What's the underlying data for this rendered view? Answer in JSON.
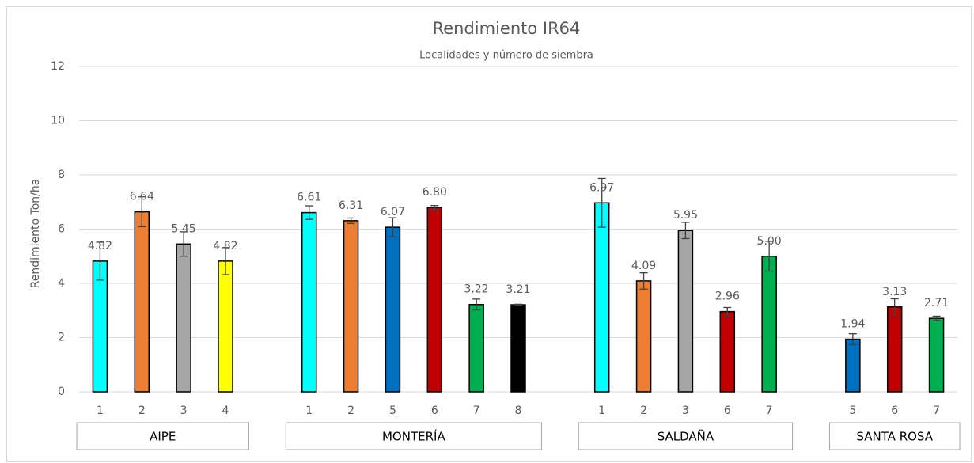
{
  "chart_data": {
    "type": "bar",
    "title": "Rendimiento IR64",
    "subtitle": "Localidades y número de siembra",
    "y_label": "Rendimiento Ton/ha",
    "ylim": [
      0,
      12
    ],
    "yticks": [
      0,
      2,
      4,
      6,
      8,
      10,
      12
    ],
    "grid": true,
    "groups": [
      {
        "name": "AIPE",
        "categories": [
          "1",
          "2",
          "3",
          "4"
        ],
        "values": [
          4.82,
          6.64,
          5.45,
          4.82
        ],
        "value_labels": [
          "4.82",
          "6.64",
          "5.45",
          "4.82"
        ],
        "errors": [
          0.7,
          0.55,
          0.45,
          0.5
        ],
        "colors": [
          "#00ffff",
          "#ed7d31",
          "#a5a5a5",
          "#ffff00"
        ]
      },
      {
        "name": "MONTERÍA",
        "categories": [
          "1",
          "2",
          "5",
          "6",
          "7",
          "8"
        ],
        "values": [
          6.61,
          6.31,
          6.07,
          6.8,
          3.22,
          3.21
        ],
        "value_labels": [
          "6.61",
          "6.31",
          "6.07",
          "6.80",
          "3.22",
          "3.21"
        ],
        "errors": [
          0.25,
          0.1,
          0.35,
          0.07,
          0.2,
          0.02
        ],
        "colors": [
          "#00ffff",
          "#ed7d31",
          "#0070c0",
          "#c00000",
          "#00b050",
          "#000000"
        ]
      },
      {
        "name": "SALDAÑA",
        "categories": [
          "1",
          "2",
          "3",
          "6",
          "7"
        ],
        "values": [
          6.97,
          4.09,
          5.95,
          2.96,
          5.0
        ],
        "value_labels": [
          "6.97",
          "4.09",
          "5.95",
          "2.96",
          "5.00"
        ],
        "errors": [
          0.9,
          0.3,
          0.3,
          0.15,
          0.55
        ],
        "colors": [
          "#00ffff",
          "#ed7d31",
          "#a5a5a5",
          "#c00000",
          "#00b050"
        ]
      },
      {
        "name": "SANTA ROSA",
        "categories": [
          "5",
          "6",
          "7"
        ],
        "values": [
          1.94,
          3.13,
          2.71
        ],
        "value_labels": [
          "1.94",
          "3.13",
          "2.71"
        ],
        "errors": [
          0.2,
          0.3,
          0.08
        ],
        "colors": [
          "#0070c0",
          "#c00000",
          "#00b050"
        ]
      }
    ]
  }
}
